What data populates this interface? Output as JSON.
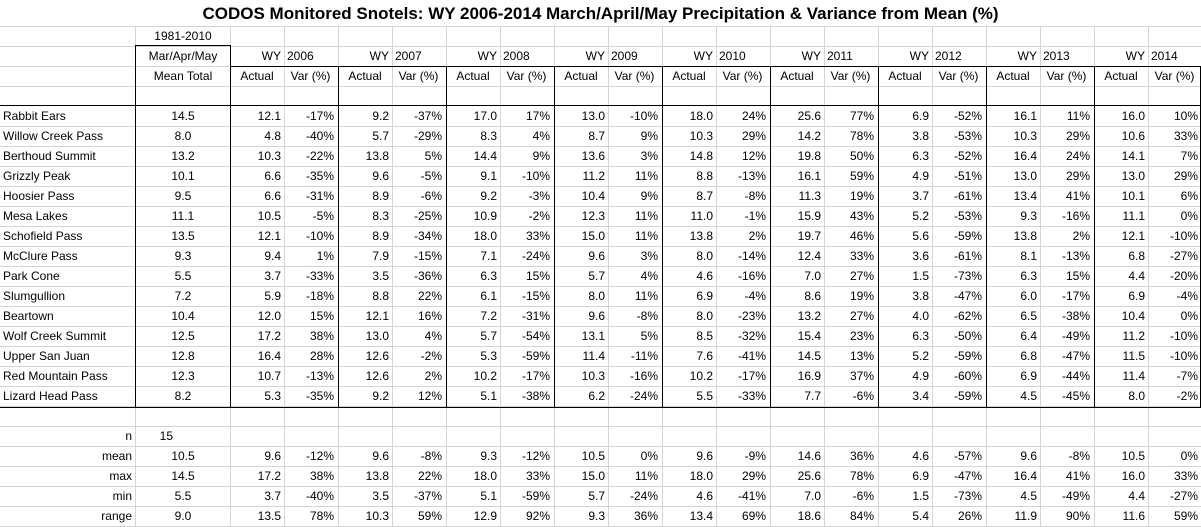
{
  "title": "CODOS Monitored Snotels:  WY 2006-2014 March/April/May Precipitation & Variance from Mean (%)",
  "header": {
    "mean_line1": "1981-2010",
    "mean_line2": "Mar/Apr/May",
    "mean_line3": "Mean Total",
    "wy_label": "WY",
    "years": [
      "2006",
      "2007",
      "2008",
      "2009",
      "2010",
      "2011",
      "2012",
      "2013",
      "2014"
    ],
    "actual_label": "Actual",
    "var_label": "Var (%)"
  },
  "sites": [
    {
      "name": "Rabbit Ears",
      "mean": "14.5",
      "vals": [
        [
          "12.1",
          "-17%"
        ],
        [
          "9.2",
          "-37%"
        ],
        [
          "17.0",
          "17%"
        ],
        [
          "13.0",
          "-10%"
        ],
        [
          "18.0",
          "24%"
        ],
        [
          "25.6",
          "77%"
        ],
        [
          "6.9",
          "-52%"
        ],
        [
          "16.1",
          "11%"
        ],
        [
          "16.0",
          "10%"
        ]
      ]
    },
    {
      "name": "Willow Creek Pass",
      "mean": "8.0",
      "vals": [
        [
          "4.8",
          "-40%"
        ],
        [
          "5.7",
          "-29%"
        ],
        [
          "8.3",
          "4%"
        ],
        [
          "8.7",
          "9%"
        ],
        [
          "10.3",
          "29%"
        ],
        [
          "14.2",
          "78%"
        ],
        [
          "3.8",
          "-53%"
        ],
        [
          "10.3",
          "29%"
        ],
        [
          "10.6",
          "33%"
        ]
      ]
    },
    {
      "name": "Berthoud Summit",
      "mean": "13.2",
      "vals": [
        [
          "10.3",
          "-22%"
        ],
        [
          "13.8",
          "5%"
        ],
        [
          "14.4",
          "9%"
        ],
        [
          "13.6",
          "3%"
        ],
        [
          "14.8",
          "12%"
        ],
        [
          "19.8",
          "50%"
        ],
        [
          "6.3",
          "-52%"
        ],
        [
          "16.4",
          "24%"
        ],
        [
          "14.1",
          "7%"
        ]
      ]
    },
    {
      "name": "Grizzly Peak",
      "mean": "10.1",
      "vals": [
        [
          "6.6",
          "-35%"
        ],
        [
          "9.6",
          "-5%"
        ],
        [
          "9.1",
          "-10%"
        ],
        [
          "11.2",
          "11%"
        ],
        [
          "8.8",
          "-13%"
        ],
        [
          "16.1",
          "59%"
        ],
        [
          "4.9",
          "-51%"
        ],
        [
          "13.0",
          "29%"
        ],
        [
          "13.0",
          "29%"
        ]
      ]
    },
    {
      "name": "Hoosier Pass",
      "mean": "9.5",
      "vals": [
        [
          "6.6",
          "-31%"
        ],
        [
          "8.9",
          "-6%"
        ],
        [
          "9.2",
          "-3%"
        ],
        [
          "10.4",
          "9%"
        ],
        [
          "8.7",
          "-8%"
        ],
        [
          "11.3",
          "19%"
        ],
        [
          "3.7",
          "-61%"
        ],
        [
          "13.4",
          "41%"
        ],
        [
          "10.1",
          "6%"
        ]
      ]
    },
    {
      "name": "Mesa Lakes",
      "mean": "11.1",
      "vals": [
        [
          "10.5",
          "-5%"
        ],
        [
          "8.3",
          "-25%"
        ],
        [
          "10.9",
          "-2%"
        ],
        [
          "12.3",
          "11%"
        ],
        [
          "11.0",
          "-1%"
        ],
        [
          "15.9",
          "43%"
        ],
        [
          "5.2",
          "-53%"
        ],
        [
          "9.3",
          "-16%"
        ],
        [
          "11.1",
          "0%"
        ]
      ]
    },
    {
      "name": "Schofield Pass",
      "mean": "13.5",
      "vals": [
        [
          "12.1",
          "-10%"
        ],
        [
          "8.9",
          "-34%"
        ],
        [
          "18.0",
          "33%"
        ],
        [
          "15.0",
          "11%"
        ],
        [
          "13.8",
          "2%"
        ],
        [
          "19.7",
          "46%"
        ],
        [
          "5.6",
          "-59%"
        ],
        [
          "13.8",
          "2%"
        ],
        [
          "12.1",
          "-10%"
        ]
      ]
    },
    {
      "name": "McClure Pass",
      "mean": "9.3",
      "vals": [
        [
          "9.4",
          "1%"
        ],
        [
          "7.9",
          "-15%"
        ],
        [
          "7.1",
          "-24%"
        ],
        [
          "9.6",
          "3%"
        ],
        [
          "8.0",
          "-14%"
        ],
        [
          "12.4",
          "33%"
        ],
        [
          "3.6",
          "-61%"
        ],
        [
          "8.1",
          "-13%"
        ],
        [
          "6.8",
          "-27%"
        ]
      ]
    },
    {
      "name": "Park Cone",
      "mean": "5.5",
      "vals": [
        [
          "3.7",
          "-33%"
        ],
        [
          "3.5",
          "-36%"
        ],
        [
          "6.3",
          "15%"
        ],
        [
          "5.7",
          "4%"
        ],
        [
          "4.6",
          "-16%"
        ],
        [
          "7.0",
          "27%"
        ],
        [
          "1.5",
          "-73%"
        ],
        [
          "6.3",
          "15%"
        ],
        [
          "4.4",
          "-20%"
        ]
      ]
    },
    {
      "name": "Slumgullion",
      "mean": "7.2",
      "vals": [
        [
          "5.9",
          "-18%"
        ],
        [
          "8.8",
          "22%"
        ],
        [
          "6.1",
          "-15%"
        ],
        [
          "8.0",
          "11%"
        ],
        [
          "6.9",
          "-4%"
        ],
        [
          "8.6",
          "19%"
        ],
        [
          "3.8",
          "-47%"
        ],
        [
          "6.0",
          "-17%"
        ],
        [
          "6.9",
          "-4%"
        ]
      ]
    },
    {
      "name": "Beartown",
      "mean": "10.4",
      "vals": [
        [
          "12.0",
          "15%"
        ],
        [
          "12.1",
          "16%"
        ],
        [
          "7.2",
          "-31%"
        ],
        [
          "9.6",
          "-8%"
        ],
        [
          "8.0",
          "-23%"
        ],
        [
          "13.2",
          "27%"
        ],
        [
          "4.0",
          "-62%"
        ],
        [
          "6.5",
          "-38%"
        ],
        [
          "10.4",
          "0%"
        ]
      ]
    },
    {
      "name": "Wolf Creek Summit",
      "mean": "12.5",
      "vals": [
        [
          "17.2",
          "38%"
        ],
        [
          "13.0",
          "4%"
        ],
        [
          "5.7",
          "-54%"
        ],
        [
          "13.1",
          "5%"
        ],
        [
          "8.5",
          "-32%"
        ],
        [
          "15.4",
          "23%"
        ],
        [
          "6.3",
          "-50%"
        ],
        [
          "6.4",
          "-49%"
        ],
        [
          "11.2",
          "-10%"
        ]
      ]
    },
    {
      "name": "Upper San Juan",
      "mean": "12.8",
      "vals": [
        [
          "16.4",
          "28%"
        ],
        [
          "12.6",
          "-2%"
        ],
        [
          "5.3",
          "-59%"
        ],
        [
          "11.4",
          "-11%"
        ],
        [
          "7.6",
          "-41%"
        ],
        [
          "14.5",
          "13%"
        ],
        [
          "5.2",
          "-59%"
        ],
        [
          "6.8",
          "-47%"
        ],
        [
          "11.5",
          "-10%"
        ]
      ]
    },
    {
      "name": "Red Mountain Pass",
      "mean": "12.3",
      "vals": [
        [
          "10.7",
          "-13%"
        ],
        [
          "12.6",
          "2%"
        ],
        [
          "10.2",
          "-17%"
        ],
        [
          "10.3",
          "-16%"
        ],
        [
          "10.2",
          "-17%"
        ],
        [
          "16.9",
          "37%"
        ],
        [
          "4.9",
          "-60%"
        ],
        [
          "6.9",
          "-44%"
        ],
        [
          "11.4",
          "-7%"
        ]
      ]
    },
    {
      "name": "Lizard Head Pass",
      "mean": "8.2",
      "vals": [
        [
          "5.3",
          "-35%"
        ],
        [
          "9.2",
          "12%"
        ],
        [
          "5.1",
          "-38%"
        ],
        [
          "6.2",
          "-24%"
        ],
        [
          "5.5",
          "-33%"
        ],
        [
          "7.7",
          "-6%"
        ],
        [
          "3.4",
          "-59%"
        ],
        [
          "4.5",
          "-45%"
        ],
        [
          "8.0",
          "-2%"
        ]
      ]
    }
  ],
  "stats": {
    "n_label": "n",
    "n_value": "15",
    "rows": [
      {
        "label": "mean",
        "mean": "10.5",
        "vals": [
          [
            "9.6",
            "-12%"
          ],
          [
            "9.6",
            "-8%"
          ],
          [
            "9.3",
            "-12%"
          ],
          [
            "10.5",
            "0%"
          ],
          [
            "9.6",
            "-9%"
          ],
          [
            "14.6",
            "36%"
          ],
          [
            "4.6",
            "-57%"
          ],
          [
            "9.6",
            "-8%"
          ],
          [
            "10.5",
            "0%"
          ]
        ]
      },
      {
        "label": "max",
        "mean": "14.5",
        "vals": [
          [
            "17.2",
            "38%"
          ],
          [
            "13.8",
            "22%"
          ],
          [
            "18.0",
            "33%"
          ],
          [
            "15.0",
            "11%"
          ],
          [
            "18.0",
            "29%"
          ],
          [
            "25.6",
            "78%"
          ],
          [
            "6.9",
            "-47%"
          ],
          [
            "16.4",
            "41%"
          ],
          [
            "16.0",
            "33%"
          ]
        ]
      },
      {
        "label": "min",
        "mean": "5.5",
        "vals": [
          [
            "3.7",
            "-40%"
          ],
          [
            "3.5",
            "-37%"
          ],
          [
            "5.1",
            "-59%"
          ],
          [
            "5.7",
            "-24%"
          ],
          [
            "4.6",
            "-41%"
          ],
          [
            "7.0",
            "-6%"
          ],
          [
            "1.5",
            "-73%"
          ],
          [
            "4.5",
            "-49%"
          ],
          [
            "4.4",
            "-27%"
          ]
        ]
      },
      {
        "label": "range",
        "mean": "9.0",
        "vals": [
          [
            "13.5",
            "78%"
          ],
          [
            "10.3",
            "59%"
          ],
          [
            "12.9",
            "92%"
          ],
          [
            "9.3",
            "36%"
          ],
          [
            "13.4",
            "69%"
          ],
          [
            "18.6",
            "84%"
          ],
          [
            "5.4",
            "26%"
          ],
          [
            "11.9",
            "90%"
          ],
          [
            "11.6",
            "59%"
          ]
        ]
      }
    ]
  }
}
